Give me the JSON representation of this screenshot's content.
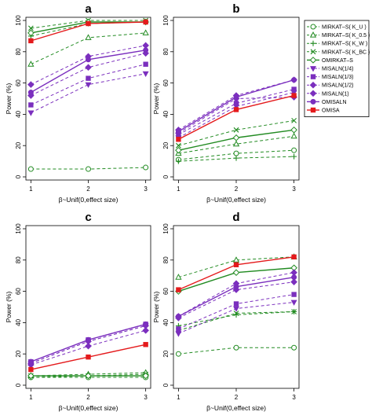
{
  "chart_data": {
    "type": "line",
    "x": [
      1,
      2,
      3
    ],
    "xlabel": "β~Unif(0,effect size)",
    "ylabel": "Power (%)",
    "ylim": [
      0,
      100
    ],
    "yticks": [
      0,
      20,
      40,
      60,
      80,
      100
    ],
    "legend_placement": "right",
    "series_styles": [
      {
        "name": "MIRKAT–S( K_U )",
        "color": "#228B22",
        "marker": "circle-open",
        "dashed": true
      },
      {
        "name": "MIRKAT–S( K_0.5 )",
        "color": "#228B22",
        "marker": "triangle-open",
        "dashed": true
      },
      {
        "name": "MIRKAT–S( K_W )",
        "color": "#228B22",
        "marker": "plus",
        "dashed": true
      },
      {
        "name": "MIRKAT–S( K_BC )",
        "color": "#228B22",
        "marker": "x",
        "dashed": true
      },
      {
        "name": "OMIRKAT–S",
        "color": "#228B22",
        "marker": "diamond-open",
        "dashed": false
      },
      {
        "name": "MISALN(1/4)",
        "color": "#7B2FBE",
        "marker": "triangle-down",
        "dashed": true
      },
      {
        "name": "MISALN(1/3)",
        "color": "#7B2FBE",
        "marker": "square",
        "dashed": true
      },
      {
        "name": "MISALN(1/2)",
        "color": "#7B2FBE",
        "marker": "diamond",
        "dashed": true
      },
      {
        "name": "MISALN(1)",
        "color": "#7B2FBE",
        "marker": "diamond",
        "dashed": true
      },
      {
        "name": "OMISALN",
        "color": "#7B2FBE",
        "marker": "circle",
        "dashed": false
      },
      {
        "name": "OMISA",
        "color": "#E41A1C",
        "marker": "square",
        "dashed": false
      }
    ],
    "panels": [
      {
        "label": "a",
        "series": [
          {
            "name": "MIRKAT–S( K_U )",
            "values": [
              5,
              5,
              6
            ]
          },
          {
            "name": "MIRKAT–S( K_0.5 )",
            "values": [
              72,
              89,
              92
            ]
          },
          {
            "name": "MIRKAT–S( K_W )",
            "values": [
              90,
              98,
              99
            ]
          },
          {
            "name": "MIRKAT–S( K_BC )",
            "values": [
              95,
              100,
              100
            ]
          },
          {
            "name": "OMIRKAT–S",
            "values": [
              92,
              99,
              99
            ]
          },
          {
            "name": "MISALN(1/4)",
            "values": [
              41,
              59,
              66
            ]
          },
          {
            "name": "MISALN(1/3)",
            "values": [
              46,
              63,
              72
            ]
          },
          {
            "name": "MISALN(1/2)",
            "values": [
              52,
              70,
              79
            ]
          },
          {
            "name": "MISALN(1)",
            "values": [
              59,
              77,
              84
            ]
          },
          {
            "name": "OMISALN",
            "values": [
              54,
              75,
              81
            ]
          },
          {
            "name": "OMISA",
            "values": [
              87,
              98,
              99
            ]
          }
        ]
      },
      {
        "label": "b",
        "series": [
          {
            "name": "MIRKAT–S( K_U )",
            "values": [
              11,
              15,
              17
            ]
          },
          {
            "name": "MIRKAT–S( K_0.5 )",
            "values": [
              15,
              21,
              26
            ]
          },
          {
            "name": "MIRKAT–S( K_W )",
            "values": [
              10,
              12,
              13
            ]
          },
          {
            "name": "MIRKAT–S( K_BC )",
            "values": [
              20,
              30,
              36
            ]
          },
          {
            "name": "OMIRKAT–S",
            "values": [
              17,
              25,
              30
            ]
          },
          {
            "name": "MISALN(1/4)",
            "values": [
              25,
              45,
              54
            ]
          },
          {
            "name": "MISALN(1/3)",
            "values": [
              27,
              47,
              56
            ]
          },
          {
            "name": "MISALN(1/2)",
            "values": [
              30,
              52,
              62
            ]
          },
          {
            "name": "MISALN(1)",
            "values": [
              28,
              50,
              51
            ]
          },
          {
            "name": "OMISALN",
            "values": [
              29,
              51,
              62
            ]
          },
          {
            "name": "OMISA",
            "values": [
              24,
              43,
              52
            ]
          }
        ]
      },
      {
        "label": "c",
        "series": [
          {
            "name": "MIRKAT–S( K_U )",
            "values": [
              5,
              5,
              5
            ]
          },
          {
            "name": "MIRKAT–S( K_0.5 )",
            "values": [
              6,
              7,
              8
            ]
          },
          {
            "name": "MIRKAT–S( K_W )",
            "values": [
              5,
              6,
              6
            ]
          },
          {
            "name": "MIRKAT–S( K_BC )",
            "values": [
              6,
              6,
              7
            ]
          },
          {
            "name": "OMIRKAT–S",
            "values": [
              6,
              6,
              6
            ]
          },
          {
            "name": "MISALN(1/4)",
            "values": [
              14,
              28,
              38
            ]
          },
          {
            "name": "MISALN(1/3)",
            "values": [
              15,
              29,
              39
            ]
          },
          {
            "name": "MISALN(1/2)",
            "values": [
              13,
              25,
              35
            ]
          },
          {
            "name": "MISALN(1)",
            "values": [
              14,
              28,
              38
            ]
          },
          {
            "name": "OMISALN",
            "values": [
              15,
              29,
              39
            ]
          },
          {
            "name": "OMISA",
            "values": [
              10,
              18,
              26
            ]
          }
        ]
      },
      {
        "label": "d",
        "series": [
          {
            "name": "MIRKAT–S( K_U )",
            "values": [
              20,
              24,
              24
            ]
          },
          {
            "name": "MIRKAT–S( K_0.5 )",
            "values": [
              69,
              80,
              82
            ]
          },
          {
            "name": "MIRKAT–S( K_W )",
            "values": [
              38,
              45,
              47
            ]
          },
          {
            "name": "MIRKAT–S( K_BC )",
            "values": [
              35,
              46,
              47
            ]
          },
          {
            "name": "OMIRKAT–S",
            "values": [
              60,
              72,
              75
            ]
          },
          {
            "name": "MISALN(1/4)",
            "values": [
              33,
              49,
              53
            ]
          },
          {
            "name": "MISALN(1/3)",
            "values": [
              36,
              52,
              58
            ]
          },
          {
            "name": "MISALN(1/2)",
            "values": [
              43,
              61,
              66
            ]
          },
          {
            "name": "MISALN(1)",
            "values": [
              44,
              65,
              72
            ]
          },
          {
            "name": "OMISALN",
            "values": [
              44,
              63,
              69
            ]
          },
          {
            "name": "OMISA",
            "values": [
              61,
              77,
              82
            ]
          }
        ]
      }
    ]
  }
}
